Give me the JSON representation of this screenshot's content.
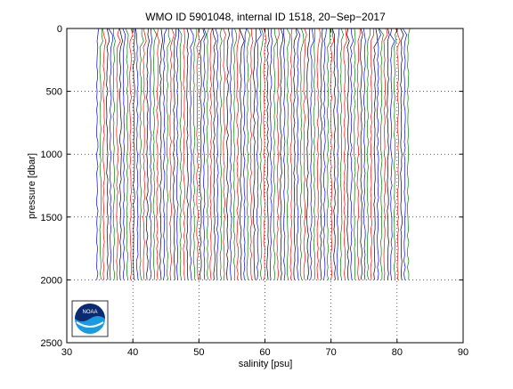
{
  "chart_data": {
    "type": "line",
    "title": "WMO ID 5901048, internal ID 1518, 20−Sep−2017",
    "xlabel": "salinity [psu]",
    "ylabel": "pressure [dbar]",
    "xlim": [
      30,
      90
    ],
    "ylim": [
      0,
      2500
    ],
    "y_reversed": true,
    "grid": "dotted",
    "x_ticks": [
      30,
      40,
      50,
      60,
      70,
      80,
      90
    ],
    "y_ticks": [
      0,
      500,
      1000,
      1500,
      2000,
      2500
    ],
    "profiles": {
      "count": 94,
      "first_offset_psu": 34.6,
      "offset_step_psu": 0.506,
      "pressure_range_dbar": [
        0,
        2000
      ],
      "colors": [
        "#0000ff",
        "#008000",
        "#ff0000",
        "#000000"
      ]
    },
    "logo": {
      "name": "noaa-logo",
      "text": "NOAA",
      "colors": [
        "#0b2a6f",
        "#1a9be0",
        "#ffffff"
      ]
    }
  }
}
